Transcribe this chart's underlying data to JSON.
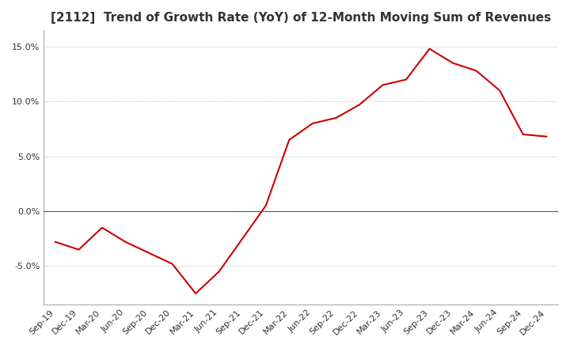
{
  "title": "[2112]  Trend of Growth Rate (YoY) of 12-Month Moving Sum of Revenues",
  "title_fontsize": 11,
  "line_color": "#cc0000",
  "background_color": "#ffffff",
  "plot_bg_color": "#ffffff",
  "ylim": [
    -8.5,
    16.5
  ],
  "yticks": [
    -5.0,
    0.0,
    5.0,
    10.0,
    15.0
  ],
  "dates": [
    "Sep-19",
    "Dec-19",
    "Mar-20",
    "Jun-20",
    "Sep-20",
    "Dec-20",
    "Mar-21",
    "Jun-21",
    "Sep-21",
    "Dec-21",
    "Mar-22",
    "Jun-22",
    "Sep-22",
    "Dec-22",
    "Mar-23",
    "Jun-23",
    "Sep-23",
    "Dec-23",
    "Mar-24",
    "Jun-24",
    "Sep-24",
    "Dec-24"
  ],
  "values": [
    -2.8,
    -3.5,
    -1.5,
    -2.8,
    -3.8,
    -4.8,
    -7.5,
    -5.5,
    -2.5,
    0.5,
    6.5,
    8.0,
    8.5,
    9.7,
    11.5,
    12.0,
    14.8,
    13.5,
    12.8,
    11.0,
    7.0,
    6.8
  ]
}
